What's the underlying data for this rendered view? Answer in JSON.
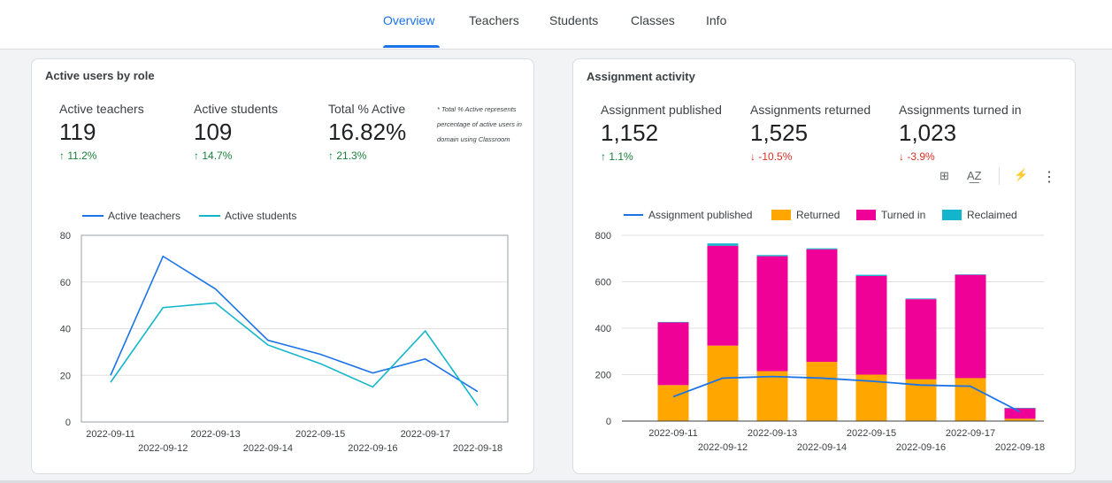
{
  "nav": {
    "tabs": [
      {
        "label": "Overview",
        "active": true
      },
      {
        "label": "Teachers",
        "active": false
      },
      {
        "label": "Students",
        "active": false
      },
      {
        "label": "Classes",
        "active": false
      },
      {
        "label": "Info",
        "active": false
      }
    ]
  },
  "left_card": {
    "title": "Active users by role",
    "metrics": [
      {
        "label": "Active teachers",
        "value": "119",
        "delta": "11.2%",
        "direction": "up"
      },
      {
        "label": "Active students",
        "value": "109",
        "delta": "14.7%",
        "direction": "up"
      },
      {
        "label": "Total % Active",
        "value": "16.82%",
        "delta": "21.3%",
        "direction": "up"
      }
    ],
    "note": "* Total % Active represents percentage of active users in domain using Classroom"
  },
  "right_card": {
    "title": "Assignment activity",
    "metrics": [
      {
        "label": "Assignment published",
        "value": "1,152",
        "delta": "1.1%",
        "direction": "up"
      },
      {
        "label": "Assignments returned",
        "value": "1,525",
        "delta": "-10.5%",
        "direction": "down"
      },
      {
        "label": "Assignments turned in",
        "value": "1,023",
        "delta": "-3.9%",
        "direction": "down"
      }
    ],
    "toolbar": [
      {
        "icon": "chart-insights-icon",
        "glyph": "⊞"
      },
      {
        "icon": "sort-az-icon",
        "glyph": "A͟Z"
      },
      {
        "icon": "lightning-icon",
        "glyph": "⚡"
      },
      {
        "icon": "more-vert-icon",
        "glyph": "⋮"
      }
    ]
  },
  "colors": {
    "accent": "#1a73e8",
    "teachers_line": "#1a73e8",
    "students_line": "#12b5cb",
    "returned": "#ffa600",
    "turned_in": "#ef0097",
    "reclaimed": "#12b5cb",
    "published_line": "#1a73e8"
  },
  "chart_data": [
    {
      "type": "line",
      "x": [
        "2022-09-11",
        "2022-09-12",
        "2022-09-13",
        "2022-09-14",
        "2022-09-15",
        "2022-09-16",
        "2022-09-17",
        "2022-09-18"
      ],
      "series": [
        {
          "name": "Active teachers",
          "values": [
            20,
            71,
            57,
            35,
            29,
            21,
            27,
            13
          ]
        },
        {
          "name": "Active students",
          "values": [
            17,
            49,
            51,
            33,
            25,
            15,
            39,
            7
          ]
        }
      ],
      "yticks": [
        "0",
        "20",
        "40",
        "60",
        "80"
      ],
      "ylim": [
        0,
        80
      ],
      "legend": "top-left",
      "grid": true
    },
    {
      "type": "bar",
      "stacked": true,
      "categories": [
        "2022-09-11",
        "2022-09-12",
        "2022-09-13",
        "2022-09-14",
        "2022-09-15",
        "2022-09-16",
        "2022-09-17",
        "2022-09-18"
      ],
      "series": [
        {
          "name": "Returned",
          "values": [
            155,
            325,
            215,
            255,
            200,
            180,
            185,
            10
          ]
        },
        {
          "name": "Turned in",
          "values": [
            270,
            430,
            495,
            485,
            425,
            345,
            445,
            45
          ]
        },
        {
          "name": "Reclaimed",
          "values": [
            2,
            10,
            5,
            4,
            5,
            3,
            2,
            2
          ]
        }
      ],
      "line_series": {
        "name": "Assignment published",
        "values": [
          105,
          185,
          192,
          185,
          172,
          155,
          150,
          40
        ]
      },
      "yticks": [
        "0",
        "200",
        "400",
        "600",
        "800"
      ],
      "ylim": [
        0,
        800
      ],
      "legend": "top-left",
      "grid": true
    }
  ]
}
